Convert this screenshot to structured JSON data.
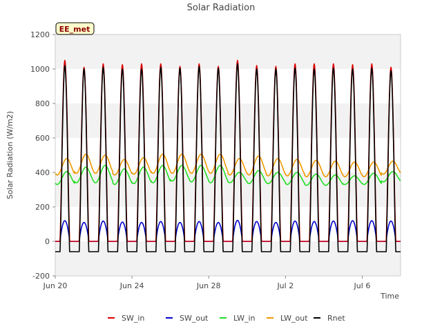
{
  "chart_data": {
    "type": "line",
    "title": "Solar Radiation",
    "xlabel": "Time",
    "ylabel": "Solar Radiation (W/m2)",
    "site_badge": "EE_met",
    "x_range": [
      "2024-06-20",
      "2024-07-08"
    ],
    "ylim": [
      -200,
      1200
    ],
    "y_ticks": [
      -200,
      0,
      200,
      400,
      600,
      800,
      1000,
      1200
    ],
    "x_ticks": [
      {
        "date": "2024-06-20",
        "label": "Jun 20"
      },
      {
        "date": "2024-06-24",
        "label": "Jun 24"
      },
      {
        "date": "2024-06-28",
        "label": "Jun 28"
      },
      {
        "date": "2024-07-02",
        "label": "Jul 2"
      },
      {
        "date": "2024-07-06",
        "label": "Jul 6"
      }
    ],
    "grid": "horizontal alternating bands",
    "legend_position": "bottom",
    "days": [
      "2024-06-20",
      "2024-06-21",
      "2024-06-22",
      "2024-06-23",
      "2024-06-24",
      "2024-06-25",
      "2024-06-26",
      "2024-06-27",
      "2024-06-28",
      "2024-06-29",
      "2024-06-30",
      "2024-07-01",
      "2024-07-02",
      "2024-07-03",
      "2024-07-04",
      "2024-07-05",
      "2024-07-06",
      "2024-07-07"
    ],
    "series": [
      {
        "name": "SW_in",
        "color": "#dd0000",
        "daily_max": [
          1050,
          1010,
          1030,
          1025,
          1030,
          1030,
          1015,
          1030,
          1015,
          1050,
          1020,
          1015,
          1030,
          1030,
          1030,
          1025,
          1030,
          1010
        ],
        "night": 0
      },
      {
        "name": "SW_out",
        "color": "#0000cc",
        "daily_max": [
          120,
          110,
          118,
          112,
          110,
          115,
          110,
          115,
          110,
          122,
          115,
          110,
          118,
          115,
          118,
          120,
          120,
          118
        ],
        "night": 0
      },
      {
        "name": "LW_in",
        "color": "#22dd22",
        "daily_max": [
          405,
          430,
          440,
          420,
          430,
          440,
          440,
          440,
          440,
          400,
          410,
          400,
          400,
          390,
          385,
          380,
          395,
          405
        ],
        "daily_min": [
          330,
          340,
          340,
          330,
          335,
          340,
          350,
          345,
          340,
          340,
          335,
          335,
          330,
          325,
          325,
          330,
          330,
          345
        ]
      },
      {
        "name": "LW_out",
        "color": "#ee9900",
        "daily_max": [
          480,
          505,
          500,
          475,
          485,
          505,
          505,
          505,
          505,
          480,
          495,
          480,
          475,
          470,
          465,
          460,
          460,
          465
        ],
        "daily_min": [
          385,
          395,
          395,
          385,
          390,
          395,
          395,
          395,
          395,
          385,
          385,
          380,
          380,
          375,
          375,
          375,
          375,
          390
        ]
      },
      {
        "name": "Rnet",
        "color": "#000000",
        "daily_max": [
          1020,
          1000,
          1010,
          1000,
          1000,
          1010,
          1005,
          1015,
          1005,
          1030,
          1000,
          1000,
          1005,
          1000,
          1005,
          1000,
          1005,
          990
        ],
        "night": -60
      }
    ]
  }
}
